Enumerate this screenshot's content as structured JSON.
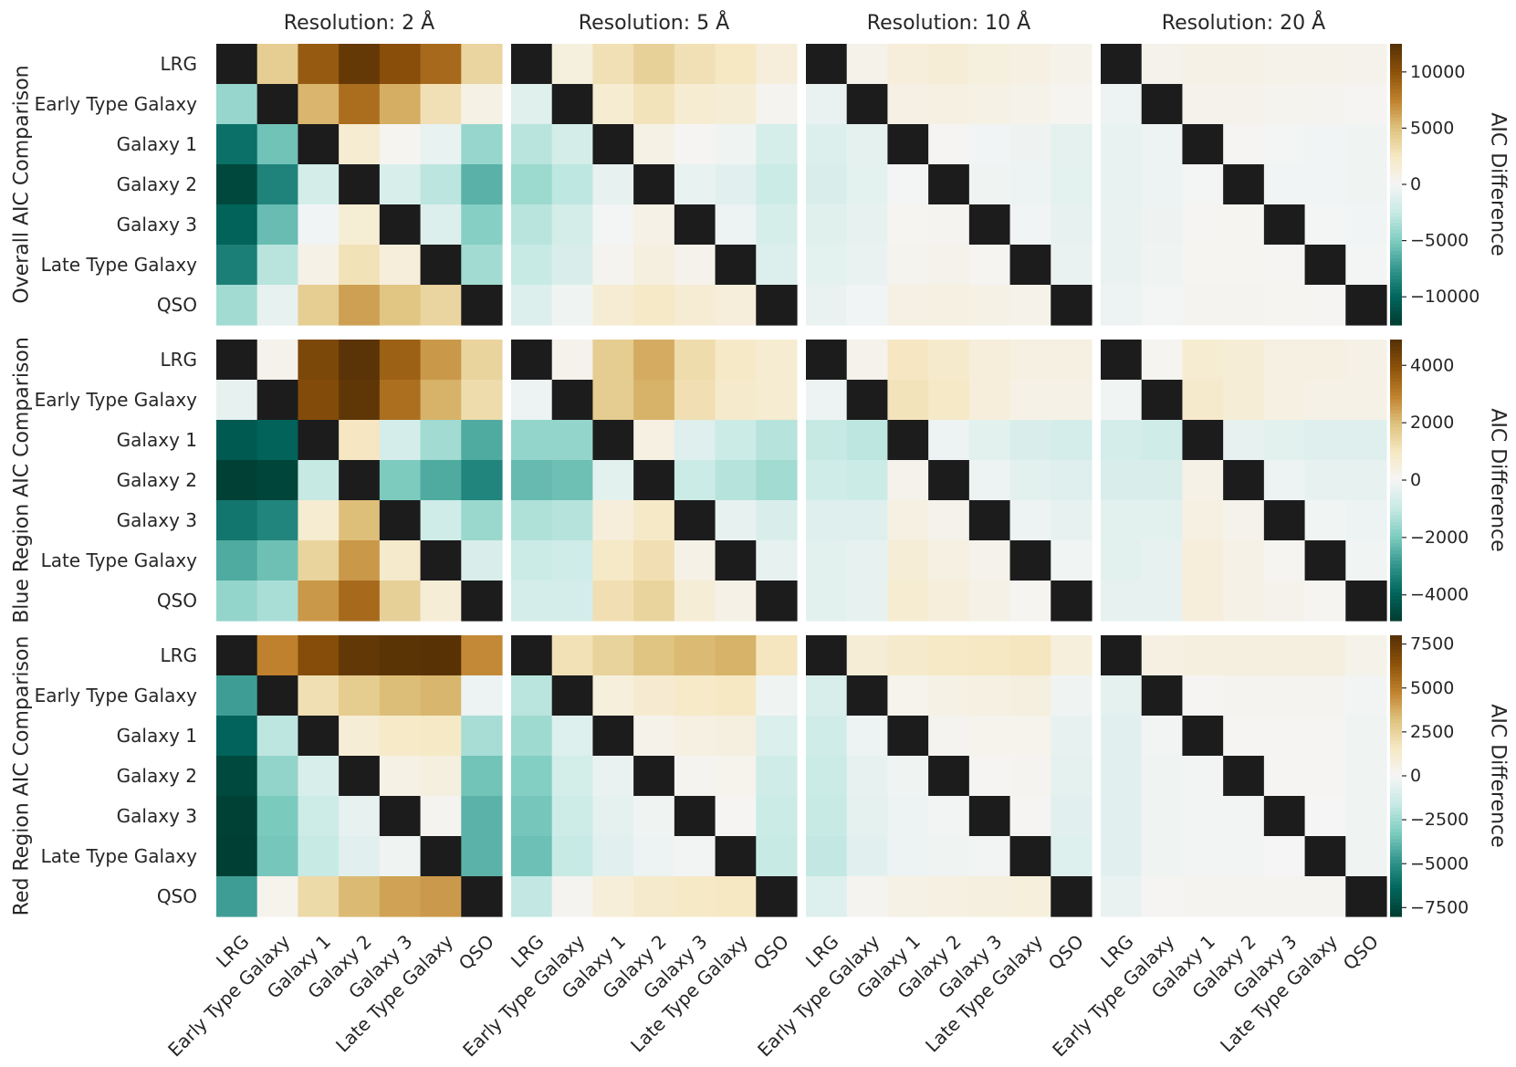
{
  "chart_data": {
    "type": "heatmap",
    "categories": [
      "LRG",
      "Early Type Galaxy",
      "Galaxy 1",
      "Galaxy 2",
      "Galaxy 3",
      "Late Type Galaxy",
      "QSO"
    ],
    "columns": [
      "Resolution: 2 Å",
      "Resolution: 5 Å",
      "Resolution: 10 Å",
      "Resolution: 20 Å"
    ],
    "rows": [
      {
        "label": "Overall AIC Comparison",
        "colorbar_label": "AIC Difference",
        "colorbar_ticks": [
          "10000",
          "5000",
          "0",
          "−5000",
          "−10000"
        ],
        "colorbar_tick_values": [
          10000,
          5000,
          0,
          -5000,
          -10000
        ],
        "range": [
          -12500,
          12500
        ],
        "panels": [
          [
            [
              null,
              4200,
              9500,
              11800,
              10200,
              8700,
              3800
            ],
            [
              -4200,
              null,
              5500,
              8500,
              5800,
              3000,
              800
            ],
            [
              -9500,
              -5500,
              null,
              1800,
              200,
              -700,
              -4200
            ],
            [
              -11800,
              -8500,
              -1800,
              null,
              -1600,
              -2900,
              -6300
            ],
            [
              -10200,
              -5800,
              -200,
              1600,
              null,
              -1300,
              -4800
            ],
            [
              -8700,
              -3000,
              700,
              2900,
              1300,
              null,
              -3800
            ],
            [
              -3800,
              -800,
              4200,
              6300,
              4800,
              3800,
              null
            ]
          ],
          [
            [
              null,
              1200,
              3000,
              4000,
              3000,
              2500,
              1300
            ],
            [
              -1200,
              null,
              1800,
              2800,
              1800,
              1500,
              300
            ],
            [
              -3000,
              -1800,
              null,
              800,
              100,
              -300,
              -1700
            ],
            [
              -4000,
              -2800,
              -800,
              null,
              -700,
              -1100,
              -2300
            ],
            [
              -3000,
              -1800,
              -100,
              700,
              null,
              -500,
              -1700
            ],
            [
              -2500,
              -1500,
              300,
              1100,
              500,
              null,
              -1300
            ],
            [
              -1300,
              -300,
              1700,
              2300,
              1700,
              1300,
              null
            ]
          ],
          [
            [
              null,
              600,
              1300,
              1500,
              1200,
              1000,
              600
            ],
            [
              -600,
              null,
              900,
              1000,
              800,
              600,
              200
            ],
            [
              -1300,
              -900,
              null,
              100,
              -200,
              -400,
              -900
            ],
            [
              -1500,
              -1000,
              -100,
              null,
              -300,
              -500,
              -1000
            ],
            [
              -1200,
              -800,
              200,
              300,
              null,
              -200,
              -800
            ],
            [
              -1000,
              -600,
              400,
              500,
              200,
              null,
              -600
            ],
            [
              -600,
              -200,
              900,
              1000,
              800,
              600,
              null
            ]
          ],
          [
            [
              null,
              500,
              700,
              700,
              600,
              600,
              500
            ],
            [
              -500,
              null,
              500,
              500,
              400,
              300,
              100
            ],
            [
              -700,
              -500,
              null,
              100,
              -100,
              -200,
              -300
            ],
            [
              -700,
              -500,
              -100,
              null,
              -200,
              -200,
              -300
            ],
            [
              -600,
              -400,
              100,
              200,
              null,
              -100,
              -200
            ],
            [
              -600,
              -300,
              200,
              200,
              100,
              null,
              -100
            ],
            [
              -500,
              -100,
              300,
              300,
              200,
              100,
              null
            ]
          ]
        ]
      },
      {
        "label": "Blue Region AIC Comparison",
        "colorbar_label": "AIC Difference",
        "colorbar_ticks": [
          "4000",
          "2000",
          "0",
          "−2000",
          "−4000"
        ],
        "colorbar_tick_values": [
          4000,
          2000,
          0,
          -2000,
          -4000
        ],
        "range": [
          -4900,
          4900
        ],
        "panels": [
          [
            [
              null,
              200,
              4200,
              4800,
              3600,
              2600,
              1500
            ],
            [
              -300,
              null,
              4100,
              4700,
              3300,
              2200,
              1300
            ],
            [
              -4200,
              -4000,
              null,
              1000,
              -700,
              -1500,
              -2600
            ],
            [
              -4800,
              -4700,
              -1000,
              null,
              -2000,
              -2600,
              -3300
            ],
            [
              -3600,
              -3300,
              700,
              2000,
              null,
              -800,
              -1600
            ],
            [
              -2600,
              -2200,
              1500,
              2600,
              800,
              null,
              -600
            ],
            [
              -1700,
              -1400,
              2600,
              3400,
              1600,
              600,
              null
            ]
          ],
          [
            [
              null,
              200,
              1700,
              2300,
              1300,
              900,
              700
            ],
            [
              -200,
              null,
              1700,
              2200,
              1200,
              800,
              700
            ],
            [
              -1700,
              -1700,
              null,
              400,
              -500,
              -900,
              -1200
            ],
            [
              -2300,
              -2200,
              -400,
              null,
              -900,
              -1200,
              -1500
            ],
            [
              -1300,
              -1200,
              500,
              900,
              null,
              -300,
              -600
            ],
            [
              -900,
              -800,
              900,
              1200,
              300,
              null,
              -300
            ],
            [
              -700,
              -700,
              1200,
              1500,
              600,
              300,
              null
            ]
          ],
          [
            [
              null,
              200,
              1000,
              800,
              500,
              400,
              400
            ],
            [
              -200,
              null,
              1100,
              900,
              500,
              300,
              300
            ],
            [
              -1000,
              -1100,
              null,
              -200,
              -400,
              -600,
              -700
            ],
            [
              -800,
              -900,
              200,
              null,
              -200,
              -400,
              -500
            ],
            [
              -500,
              -500,
              400,
              200,
              null,
              -200,
              -300
            ],
            [
              -400,
              -300,
              600,
              400,
              200,
              null,
              -100
            ],
            [
              -400,
              -300,
              700,
              500,
              300,
              100,
              null
            ]
          ],
          [
            [
              null,
              100,
              700,
              600,
              400,
              400,
              300
            ],
            [
              -100,
              null,
              800,
              600,
              400,
              300,
              300
            ],
            [
              -700,
              -800,
              null,
              -300,
              -400,
              -500,
              -500
            ],
            [
              -600,
              -600,
              300,
              null,
              -200,
              -300,
              -300
            ],
            [
              -400,
              -400,
              400,
              200,
              null,
              -100,
              -200
            ],
            [
              -400,
              -300,
              500,
              300,
              100,
              null,
              -100
            ],
            [
              -300,
              -300,
              500,
              300,
              200,
              100,
              null
            ]
          ]
        ]
      },
      {
        "label": "Red Region AIC Comparison",
        "colorbar_label": "AIC Difference",
        "colorbar_ticks": [
          "7500",
          "5000",
          "2500",
          "0",
          "−2500",
          "−5000",
          "−7500"
        ],
        "colorbar_tick_values": [
          7500,
          5000,
          2500,
          0,
          -2500,
          -5000,
          -7500
        ],
        "range": [
          -8000,
          8000
        ],
        "panels": [
          [
            [
              null,
              4800,
              6600,
              7600,
              7800,
              7900,
              4600
            ],
            [
              -4600,
              null,
              2000,
              2800,
              3300,
              3500,
              -300
            ],
            [
              -6500,
              -1800,
              null,
              1000,
              1400,
              1500,
              -2300
            ],
            [
              -7500,
              -2800,
              -1000,
              null,
              500,
              700,
              -3500
            ],
            [
              -7800,
              -3300,
              -1400,
              -500,
              null,
              200,
              -4000
            ],
            [
              -7900,
              -3400,
              -1600,
              -700,
              -200,
              null,
              -4000
            ],
            [
              -4600,
              300,
              2200,
              3400,
              4000,
              4200,
              null
            ]
          ],
          [
            [
              null,
              1900,
              2500,
              3100,
              3400,
              3600,
              1700
            ],
            [
              -1900,
              null,
              800,
              1200,
              1400,
              1600,
              -200
            ],
            [
              -2500,
              -800,
              null,
              400,
              600,
              700,
              -900
            ],
            [
              -3100,
              -1200,
              -400,
              null,
              200,
              300,
              -1300
            ],
            [
              -3400,
              -1400,
              -600,
              -200,
              null,
              100,
              -1500
            ],
            [
              -3600,
              -1600,
              -700,
              -300,
              -100,
              null,
              -1600
            ],
            [
              -1700,
              200,
              900,
              1300,
              1500,
              1600,
              null
            ]
          ],
          [
            [
              null,
              1000,
              1300,
              1500,
              1600,
              1700,
              800
            ],
            [
              -1000,
              null,
              300,
              500,
              600,
              700,
              -200
            ],
            [
              -1300,
              -300,
              null,
              200,
              300,
              300,
              -500
            ],
            [
              -1500,
              -500,
              -200,
              null,
              100,
              200,
              -600
            ],
            [
              -1600,
              -600,
              -300,
              -100,
              null,
              100,
              -700
            ],
            [
              -1700,
              -700,
              -300,
              -200,
              -100,
              null,
              -800
            ],
            [
              -800,
              200,
              500,
              600,
              700,
              800,
              null
            ]
          ],
          [
            [
              null,
              600,
              700,
              700,
              700,
              700,
              400
            ],
            [
              -600,
              null,
              100,
              200,
              200,
              200,
              -100
            ],
            [
              -700,
              -100,
              null,
              100,
              100,
              100,
              -200
            ],
            [
              -700,
              -200,
              -100,
              null,
              100,
              100,
              -200
            ],
            [
              -700,
              -200,
              -100,
              -100,
              null,
              0,
              -200
            ],
            [
              -700,
              -200,
              -100,
              -100,
              0,
              null,
              -200
            ],
            [
              -400,
              100,
              200,
              200,
              200,
              200,
              null
            ]
          ]
        ]
      }
    ],
    "diagonal_color": "#1c1c1c",
    "colormap": [
      "#003c30",
      "#01665e",
      "#35978f",
      "#80cdc1",
      "#c7eae5",
      "#f5f5f5",
      "#f6e8c3",
      "#dfc27d",
      "#bf812d",
      "#8c510a",
      "#543005"
    ]
  }
}
